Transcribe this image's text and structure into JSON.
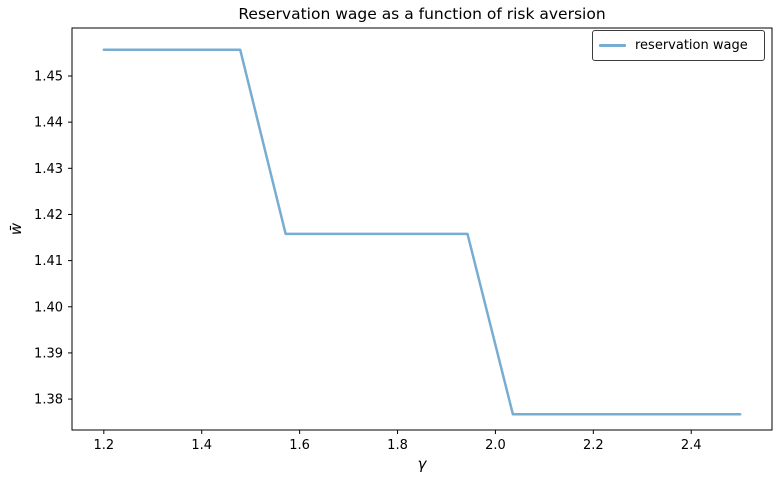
{
  "chart_data": {
    "type": "line",
    "title": "Reservation wage as a function of risk aversion",
    "xlabel": "γ",
    "ylabel": "w̄",
    "xlim": [
      1.135,
      2.565
    ],
    "ylim": [
      1.3733,
      1.4604
    ],
    "grid": false,
    "legend": {
      "position": "upper right",
      "entries": [
        "reservation wage"
      ]
    },
    "colors": {
      "line": "#78add2",
      "axis": "#000000",
      "text": "#000000",
      "legend_border": "#3c3c3c",
      "background": "#ffffff"
    },
    "xticks": [
      {
        "value": 1.2,
        "label": "1.2"
      },
      {
        "value": 1.4,
        "label": "1.4"
      },
      {
        "value": 1.6,
        "label": "1.6"
      },
      {
        "value": 1.8,
        "label": "1.8"
      },
      {
        "value": 2.0,
        "label": "2.0"
      },
      {
        "value": 2.2,
        "label": "2.2"
      },
      {
        "value": 2.4,
        "label": "2.4"
      }
    ],
    "yticks": [
      {
        "value": 1.38,
        "label": "1.38"
      },
      {
        "value": 1.39,
        "label": "1.39"
      },
      {
        "value": 1.4,
        "label": "1.40"
      },
      {
        "value": 1.41,
        "label": "1.41"
      },
      {
        "value": 1.42,
        "label": "1.42"
      },
      {
        "value": 1.43,
        "label": "1.43"
      },
      {
        "value": 1.44,
        "label": "1.44"
      },
      {
        "value": 1.45,
        "label": "1.45"
      }
    ],
    "series": [
      {
        "name": "reservation wage",
        "color": "#78add2",
        "line_width": 2.5,
        "x": [
          1.2,
          1.2929,
          1.3857,
          1.4786,
          1.5714,
          1.6643,
          1.7571,
          1.85,
          1.9429,
          2.0357,
          2.1286,
          2.2214,
          2.3143,
          2.4071,
          2.5
        ],
        "y": [
          1.4557,
          1.4557,
          1.4557,
          1.4557,
          1.4158,
          1.4158,
          1.4158,
          1.4158,
          1.4158,
          1.3767,
          1.3767,
          1.3767,
          1.3767,
          1.3767,
          1.3767
        ]
      }
    ]
  }
}
